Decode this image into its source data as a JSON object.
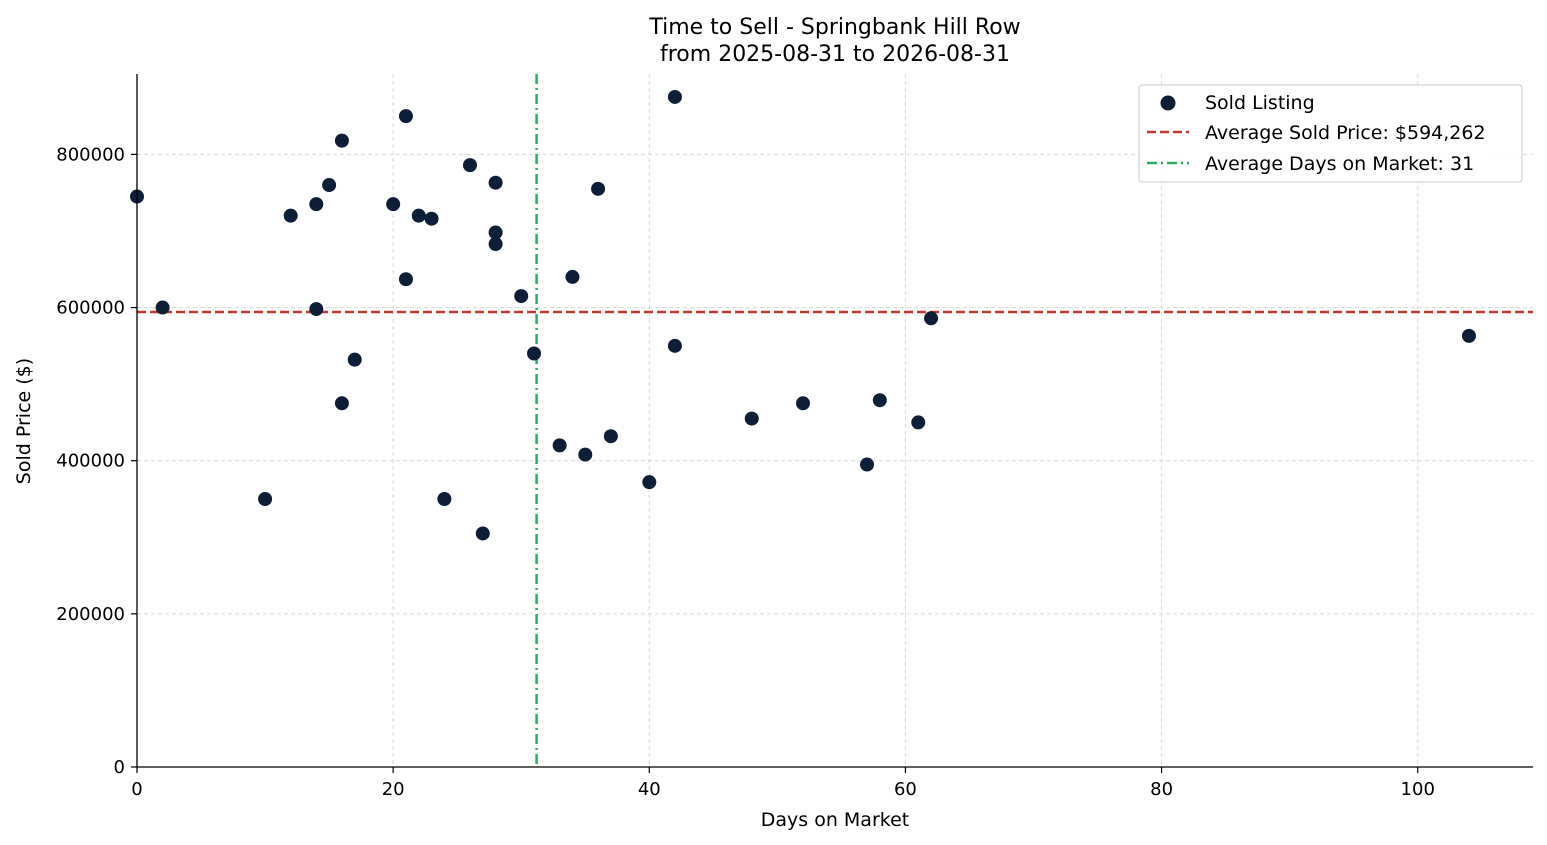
{
  "chart_data": {
    "type": "scatter",
    "title_line1": "Time to Sell - Springbank Hill Row",
    "title_line2": "from 2025-08-31 to 2026-08-31",
    "xlabel": "Days on Market",
    "ylabel": "Sold Price ($)",
    "xlim": [
      0,
      109
    ],
    "ylim": [
      0,
      905000
    ],
    "xticks": [
      0,
      20,
      40,
      60,
      80,
      100
    ],
    "yticks": [
      0,
      200000,
      400000,
      600000,
      800000
    ],
    "grid": true,
    "legend_position": "top-right",
    "marker_color": "#0d1f38",
    "avg_price_color": "#c0392b",
    "avg_days_color": "#27ae60",
    "average_sold_price": 594262,
    "average_days_on_market": 31.2,
    "legend": {
      "sold_listing": "Sold Listing",
      "avg_price": "Average Sold Price: $594,262",
      "avg_days": "Average Days on Market: 31"
    },
    "series": [
      {
        "name": "Sold Listing",
        "points": [
          [
            0,
            745000
          ],
          [
            2,
            600000
          ],
          [
            10,
            350000
          ],
          [
            12,
            720000
          ],
          [
            14,
            735000
          ],
          [
            14,
            598000
          ],
          [
            15,
            760000
          ],
          [
            16,
            818000
          ],
          [
            16,
            475000
          ],
          [
            17,
            532000
          ],
          [
            20,
            735000
          ],
          [
            21,
            850000
          ],
          [
            21,
            637000
          ],
          [
            22,
            720000
          ],
          [
            23,
            716000
          ],
          [
            24,
            350000
          ],
          [
            26,
            786000
          ],
          [
            27,
            305000
          ],
          [
            28,
            763000
          ],
          [
            28,
            698000
          ],
          [
            28,
            683000
          ],
          [
            30,
            615000
          ],
          [
            31,
            540000
          ],
          [
            33,
            420000
          ],
          [
            34,
            640000
          ],
          [
            35,
            408000
          ],
          [
            36,
            755000
          ],
          [
            37,
            432000
          ],
          [
            40,
            372000
          ],
          [
            42,
            875000
          ],
          [
            42,
            550000
          ],
          [
            48,
            455000
          ],
          [
            52,
            475000
          ],
          [
            57,
            395000
          ],
          [
            58,
            479000
          ],
          [
            61,
            450000
          ],
          [
            62,
            586000
          ],
          [
            104,
            563000
          ]
        ]
      }
    ]
  }
}
